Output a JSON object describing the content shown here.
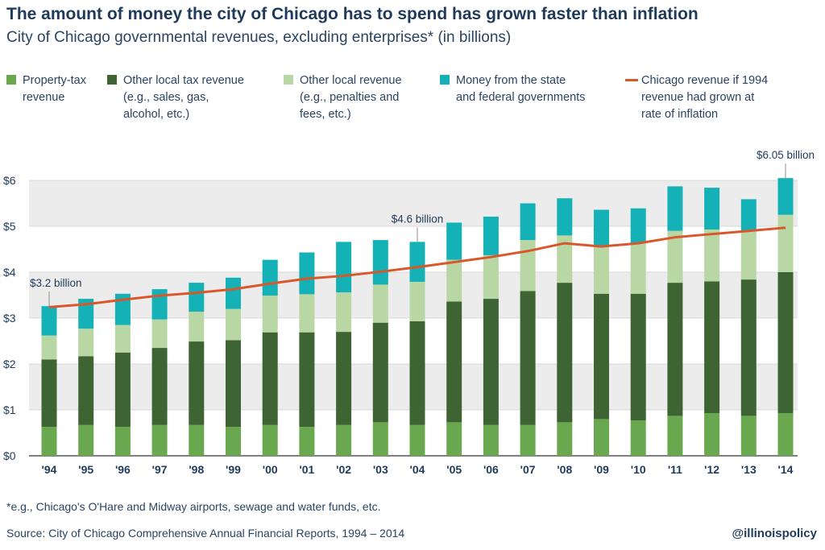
{
  "title": "The amount of money the city of Chicago has to spend has grown faster than inflation",
  "subtitle": "City of Chicago governmental revenues, excluding enterprises* (in billions)",
  "legend": [
    {
      "label_lines": [
        "Property-tax",
        "revenue"
      ],
      "color": "#6aa84f",
      "kind": "box"
    },
    {
      "label_lines": [
        "Other local tax revenue",
        "(e.g., sales, gas,",
        "alcohol, etc.)"
      ],
      "color": "#3f6433",
      "kind": "box"
    },
    {
      "label_lines": [
        "Other local revenue",
        "(e.g., penalties and",
        "fees, etc.)"
      ],
      "color": "#b9d7a4",
      "kind": "box"
    },
    {
      "label_lines": [
        "Money from the state",
        "and federal governments"
      ],
      "color": "#14b1b7",
      "kind": "box"
    },
    {
      "label_lines": [
        "Chicago revenue if 1994",
        "revenue had grown at",
        "rate of inflation"
      ],
      "color": "#d9572b",
      "kind": "line"
    }
  ],
  "footnote": "*e.g., Chicago's O'Hare and Midway airports, sewage and water funds, etc.",
  "source": "Source: City of Chicago Comprehensive Annual Financial Reports, 1994 – 2014",
  "handle": "@illinoispolicy",
  "chart_data": {
    "type": "bar",
    "stacked": true,
    "categories": [
      "'94",
      "'95",
      "'96",
      "'97",
      "'98",
      "'99",
      "'00",
      "'01",
      "'02",
      "'03",
      "'04",
      "'05",
      "'06",
      "'07",
      "'08",
      "'09",
      "'10",
      "'11",
      "'12",
      "'13",
      "'14"
    ],
    "yticks": [
      "$0",
      "$1",
      "$2",
      "$3",
      "$4",
      "$5",
      "$6"
    ],
    "ylim": [
      0,
      6.3
    ],
    "series": [
      {
        "name": "Property-tax revenue",
        "color": "#6aa84f",
        "values": [
          0.63,
          0.67,
          0.63,
          0.67,
          0.67,
          0.63,
          0.67,
          0.63,
          0.67,
          0.73,
          0.67,
          0.73,
          0.67,
          0.67,
          0.73,
          0.8,
          0.77,
          0.87,
          0.93,
          0.87,
          0.93
        ]
      },
      {
        "name": "Other local tax revenue (e.g., sales, gas, alcohol, etc.)",
        "color": "#3f6433",
        "values": [
          1.47,
          1.5,
          1.62,
          1.68,
          1.82,
          1.89,
          2.02,
          2.06,
          2.03,
          2.17,
          2.26,
          2.63,
          2.75,
          2.92,
          3.04,
          2.73,
          2.76,
          2.9,
          2.87,
          2.97,
          3.07
        ]
      },
      {
        "name": "Other local revenue (e.g., penalties and fees, etc.)",
        "color": "#b9d7a4",
        "values": [
          0.52,
          0.6,
          0.6,
          0.62,
          0.65,
          0.68,
          0.8,
          0.83,
          0.86,
          0.83,
          0.86,
          0.91,
          0.95,
          1.11,
          1.03,
          1.04,
          1.11,
          1.13,
          1.13,
          1.06,
          1.25
        ]
      },
      {
        "name": "Money from the state and federal governments",
        "color": "#14b1b7",
        "values": [
          0.64,
          0.65,
          0.68,
          0.66,
          0.63,
          0.68,
          0.78,
          0.91,
          1.1,
          0.97,
          0.87,
          0.81,
          0.84,
          0.8,
          0.81,
          0.79,
          0.75,
          0.97,
          0.91,
          0.69,
          0.8
        ]
      }
    ],
    "inflation_line": {
      "name": "Chicago revenue if 1994 revenue had grown at rate of inflation",
      "color": "#d9572b",
      "values": [
        3.24,
        3.3,
        3.4,
        3.49,
        3.55,
        3.63,
        3.75,
        3.86,
        3.92,
        4.01,
        4.11,
        4.22,
        4.33,
        4.46,
        4.63,
        4.56,
        4.63,
        4.76,
        4.83,
        4.9,
        4.97
      ]
    },
    "annotations": [
      {
        "text": "$3.2 billion",
        "index": 0
      },
      {
        "text": "$4.6 billion",
        "index": 10
      },
      {
        "text": "$6.05 billion",
        "index": 20
      }
    ]
  }
}
